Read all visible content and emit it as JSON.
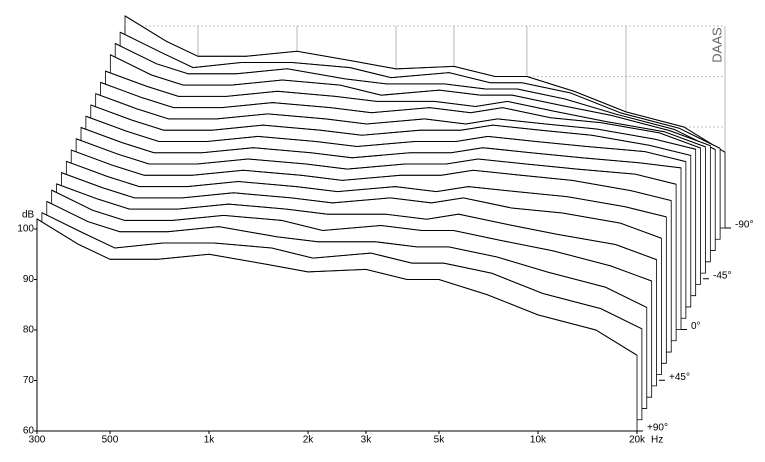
{
  "chart_data": {
    "type": "waterfall",
    "y_label": "dB",
    "x_unit": "Hz",
    "watermark": "DAAS",
    "color": "#000000",
    "grid_color": "#888888",
    "x": [
      300,
      400,
      500,
      700,
      1000,
      1500,
      2000,
      3000,
      4000,
      5000,
      7000,
      10000,
      15000,
      20000
    ],
    "xlim": [
      300,
      20000
    ],
    "ylim": [
      60,
      100
    ],
    "xticks": [
      300,
      500,
      {
        "value": 1000,
        "label": "1k"
      },
      {
        "value": 2000,
        "label": "2k"
      },
      {
        "value": 3000,
        "label": "3k"
      },
      {
        "value": 5000,
        "label": "5k"
      },
      {
        "value": 10000,
        "label": "10k"
      },
      {
        "value": 20000,
        "label": "20k"
      }
    ],
    "yticks": [
      60,
      70,
      80,
      90,
      100
    ],
    "zlim": [
      90,
      -90
    ],
    "zticks": [
      {
        "value": -90,
        "label": "-90°"
      },
      {
        "value": -45,
        "label": "-45°"
      },
      {
        "value": 0,
        "label": "0°"
      },
      {
        "value": 45,
        "label": "+45°"
      },
      {
        "value": 90,
        "label": "+90°"
      }
    ],
    "series": [
      {
        "z": 90,
        "values": [
          102,
          97,
          94,
          94,
          95,
          93,
          91.5,
          92,
          90,
          90,
          87,
          83,
          80,
          75
        ]
      },
      {
        "z": 80,
        "values": [
          101,
          97,
          94,
          95,
          95,
          94,
          92,
          93,
          91,
          91,
          89,
          85,
          82,
          78
        ]
      },
      {
        "z": 70,
        "values": [
          101,
          97,
          95,
          95,
          96,
          94,
          93,
          93,
          92,
          92,
          90,
          87,
          84,
          80
        ]
      },
      {
        "z": 60,
        "values": [
          101,
          97,
          95,
          95,
          96,
          95,
          93,
          94,
          93,
          93,
          91,
          89,
          86,
          83
        ]
      },
      {
        "z": 50,
        "values": [
          100,
          97,
          95,
          95,
          96,
          95,
          94,
          94,
          93,
          94,
          92,
          90,
          88,
          85
        ]
      },
      {
        "z": 40,
        "values": [
          100,
          97,
          95,
          95,
          96,
          95,
          94,
          95,
          94,
          95,
          93,
          92,
          90,
          87
        ]
      },
      {
        "z": 30,
        "values": [
          100,
          97,
          95,
          95,
          96,
          95,
          94,
          95,
          94,
          95,
          94,
          93,
          91,
          89
        ]
      },
      {
        "z": 20,
        "values": [
          100,
          97,
          95,
          95,
          96,
          95,
          94,
          95,
          95,
          96,
          95,
          94,
          92,
          90
        ]
      },
      {
        "z": 10,
        "values": [
          100,
          97,
          95,
          95,
          96,
          95,
          94,
          95,
          95,
          96,
          95,
          94,
          93,
          91
        ]
      },
      {
        "z": 0,
        "values": [
          100,
          97,
          95,
          95,
          96,
          95,
          94,
          95,
          95,
          96,
          95,
          94,
          93,
          92
        ]
      },
      {
        "z": -10,
        "values": [
          100,
          97,
          95,
          95,
          96,
          95,
          94,
          95,
          95,
          96,
          95,
          94,
          93,
          91
        ]
      },
      {
        "z": -20,
        "values": [
          100,
          97,
          95,
          95,
          96,
          95,
          94,
          95,
          95,
          96,
          95,
          94,
          92,
          90
        ]
      },
      {
        "z": -30,
        "values": [
          100,
          97,
          95,
          95,
          96,
          95,
          94,
          95,
          94,
          95,
          94,
          93,
          91,
          89
        ]
      },
      {
        "z": -40,
        "values": [
          100,
          97,
          95,
          95,
          96,
          95,
          94,
          95,
          94,
          95,
          93,
          92,
          90,
          87
        ]
      },
      {
        "z": -50,
        "values": [
          100,
          97,
          95,
          95,
          96,
          95,
          94,
          94,
          93,
          94,
          92,
          90,
          88,
          85
        ]
      },
      {
        "z": -60,
        "values": [
          101,
          97,
          95,
          95,
          96,
          95,
          93,
          94,
          93,
          93,
          91,
          89,
          86,
          83
        ]
      },
      {
        "z": -70,
        "values": [
          101,
          97,
          95,
          95,
          96,
          94,
          93,
          93,
          92,
          92,
          90,
          87,
          84,
          80
        ]
      },
      {
        "z": -80,
        "values": [
          101,
          97,
          94,
          95,
          95,
          94,
          92,
          93,
          91,
          91,
          89,
          85,
          82,
          78
        ]
      },
      {
        "z": -90,
        "values": [
          102,
          97,
          94,
          94,
          95,
          93,
          91.5,
          92,
          90,
          90,
          87,
          83,
          80,
          75
        ]
      }
    ]
  }
}
